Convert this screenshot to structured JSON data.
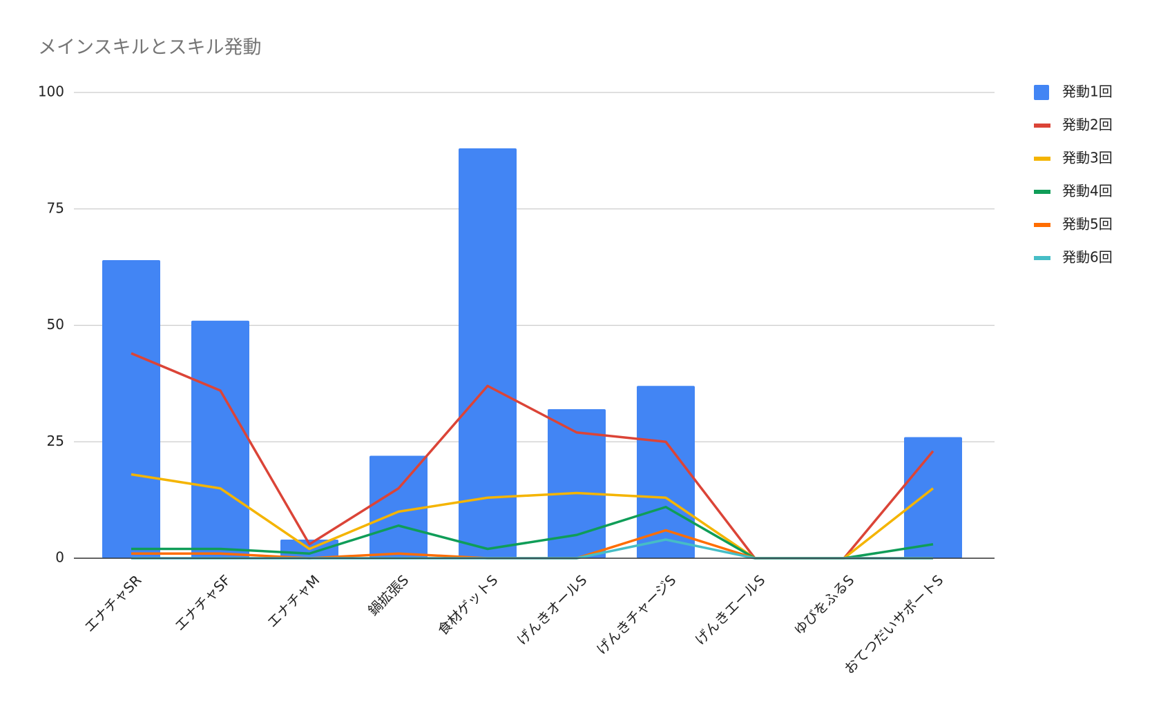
{
  "chart_data": {
    "type": "bar",
    "title": "メインスキルとスキル発動",
    "categories": [
      "エナチャSR",
      "エナチャSF",
      "エナチャM",
      "鍋拡張S",
      "食材ゲットS",
      "げんきオールS",
      "げんきチャージS",
      "げんきエールS",
      "ゆびをふるS",
      "おてつだいサポートS"
    ],
    "series": [
      {
        "name": "発動1回",
        "type": "bar",
        "color": "#4285f4",
        "values": [
          64,
          51,
          4,
          22,
          88,
          32,
          37,
          0,
          0,
          26
        ]
      },
      {
        "name": "発動2回",
        "type": "line",
        "color": "#db4437",
        "values": [
          44,
          36,
          3,
          15,
          37,
          27,
          25,
          0,
          0,
          23
        ]
      },
      {
        "name": "発動3回",
        "type": "line",
        "color": "#f4b400",
        "values": [
          18,
          15,
          2,
          10,
          13,
          14,
          13,
          0,
          0,
          15
        ]
      },
      {
        "name": "発動4回",
        "type": "line",
        "color": "#0f9d58",
        "values": [
          2,
          2,
          1,
          7,
          2,
          5,
          11,
          0,
          0,
          3
        ]
      },
      {
        "name": "発動5回",
        "type": "line",
        "color": "#ff6d01",
        "values": [
          1,
          1,
          0,
          1,
          0,
          0,
          6,
          0,
          0,
          0
        ]
      },
      {
        "name": "発動6回",
        "type": "line",
        "color": "#46bdc6",
        "values": [
          0,
          0,
          0,
          0,
          0,
          0,
          4,
          0,
          0,
          0
        ]
      }
    ],
    "ylim": [
      0,
      100
    ],
    "yticks": [
      0,
      25,
      50,
      75,
      100
    ],
    "grid": true,
    "legend": "right"
  }
}
